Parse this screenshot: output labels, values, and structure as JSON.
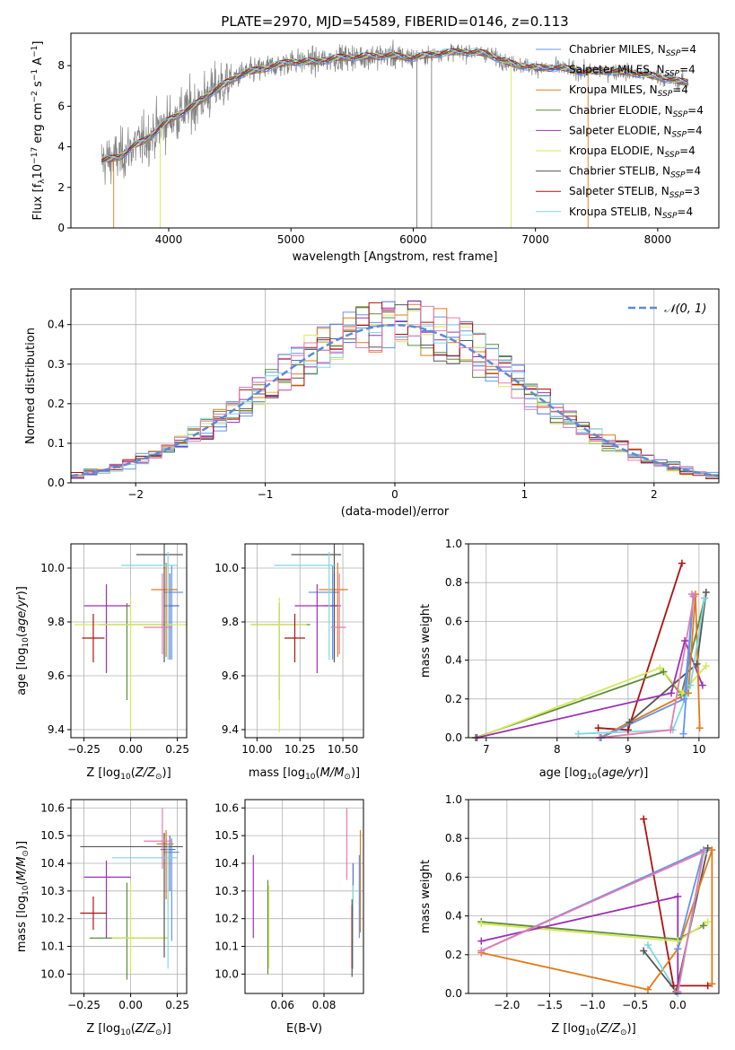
{
  "figure": {
    "title": "PLATE=2970, MJD=54589, FIBERID=0146, z=0.113"
  },
  "colors": {
    "chabrier_miles": "#6495ed",
    "salpeter_miles": "#4f6fd0",
    "kroupa_miles": "#e07b1a",
    "chabrier_elodie": "#5b8c3a",
    "salpeter_elodie": "#9b30b4",
    "kroupa_elodie": "#d6e85a",
    "chabrier_stelib": "#555555",
    "salpeter_stelib": "#b01010",
    "kroupa_stelib": "#7dd8e0",
    "pink": "#e87ab0",
    "gaussian": "#5b8ad6",
    "data_gray": "#808080"
  },
  "chart_data": [
    {
      "id": "spectrum",
      "type": "line",
      "xlabel": "wavelength [Angstrom, rest frame]",
      "ylabel": "Flux [f_λ10^-17 erg cm^-2 s^-1 A^-1]",
      "xlim": [
        3200,
        8500
      ],
      "ylim": [
        0,
        9.6
      ],
      "xticks": [
        4000,
        5000,
        6000,
        7000,
        8000
      ],
      "yticks": [
        0,
        2,
        4,
        6,
        8
      ],
      "legend": [
        "Chabrier MILES, N_SSP=4",
        "Salpeter MILES, N_SSP=4",
        "Kroupa MILES, N_SSP=4",
        "Chabrier ELODIE, N_SSP=4",
        "Salpeter ELODIE, N_SSP=4",
        "Kroupa ELODIE, N_SSP=4",
        "Chabrier STELIB, N_SSP=4",
        "Salpeter STELIB, N_SSP=3",
        "Kroupa STELIB, N_SSP=4"
      ],
      "legend_colors": [
        "#6495ed",
        "#4f6fd0",
        "#e07b1a",
        "#5b8c3a",
        "#9b30b4",
        "#d6e85a",
        "#555555",
        "#b01010",
        "#7dd8e0"
      ],
      "legend_placement": "right",
      "continuum": {
        "x": [
          3450,
          3600,
          3700,
          3800,
          3900,
          4000,
          4200,
          4400,
          4600,
          4800,
          5000,
          5200,
          5400,
          5600,
          5800,
          6000,
          6200,
          6400,
          6600,
          6800,
          7000,
          7200,
          7400,
          7600,
          7800,
          8000,
          8200
        ],
        "y": [
          3.3,
          3.5,
          4.0,
          4.3,
          4.8,
          5.3,
          6.0,
          6.9,
          7.6,
          7.9,
          8.2,
          8.2,
          8.4,
          8.45,
          8.5,
          8.4,
          8.6,
          8.7,
          8.6,
          8.1,
          7.9,
          7.9,
          7.7,
          7.75,
          7.65,
          7.45,
          7.2
        ]
      }
    },
    {
      "id": "residuals",
      "type": "histogram",
      "xlabel": "(data-model)/error",
      "ylabel": "Normed distribution",
      "xlim": [
        -2.5,
        2.5
      ],
      "ylim": [
        0,
        0.49
      ],
      "xticks": [
        -2,
        -1,
        0,
        1,
        2
      ],
      "yticks": [
        0.0,
        0.1,
        0.2,
        0.3,
        0.4
      ],
      "grid": true,
      "legend": [
        "𝒩(0, 1)"
      ],
      "legend_placement": "top-right",
      "bin_width": 0.1
    },
    {
      "id": "age_vs_Z",
      "type": "errorbar",
      "xlabel": "Z [log10(Z/Z⊙)]",
      "ylabel": "age [log10(age/yr)]",
      "xlim": [
        -0.32,
        0.3
      ],
      "ylim": [
        9.37,
        10.09
      ],
      "xticks": [
        -0.25,
        0.0,
        0.25
      ],
      "yticks": [
        9.4,
        9.6,
        9.8,
        10.0
      ],
      "grid": true,
      "points": [
        {
          "model": "chabrier_miles",
          "x": 0.22,
          "xerr": [
            0.04,
            0.06
          ],
          "y": 9.91,
          "yerr": [
            0.25,
            0.1
          ]
        },
        {
          "model": "salpeter_miles",
          "x": 0.21,
          "xerr": [
            0.03,
            0.05
          ],
          "y": 9.86,
          "yerr": [
            0.2,
            0.12
          ]
        },
        {
          "model": "kroupa_miles",
          "x": 0.19,
          "xerr": [
            0.08,
            0.06
          ],
          "y": 9.92,
          "yerr": [
            0.25,
            0.1
          ]
        },
        {
          "model": "chabrier_elodie",
          "x": -0.02,
          "xerr": [
            0.15,
            0.22
          ],
          "y": 9.79,
          "yerr": [
            0.28,
            0.08
          ]
        },
        {
          "model": "salpeter_elodie",
          "x": -0.13,
          "xerr": [
            0.12,
            0.13
          ],
          "y": 9.86,
          "yerr": [
            0.25,
            0.08
          ]
        },
        {
          "model": "kroupa_elodie",
          "x": 0.0,
          "xerr": [
            0.3,
            0.3
          ],
          "y": 9.79,
          "yerr": [
            0.4,
            0.1
          ]
        },
        {
          "model": "chabrier_stelib",
          "x": 0.18,
          "xerr": [
            0.15,
            0.1
          ],
          "y": 10.05,
          "yerr": [
            0.4,
            0.05
          ]
        },
        {
          "model": "salpeter_stelib",
          "x": -0.2,
          "xerr": [
            0.06,
            0.06
          ],
          "y": 9.74,
          "yerr": [
            0.09,
            0.09
          ]
        },
        {
          "model": "kroupa_stelib",
          "x": 0.2,
          "xerr": [
            0.25,
            0.05
          ],
          "y": 10.01,
          "yerr": [
            0.35,
            0.05
          ]
        },
        {
          "model": "pink",
          "x": 0.17,
          "xerr": [
            0.1,
            0.05
          ],
          "y": 9.78,
          "yerr": [
            0.1,
            0.2
          ]
        }
      ]
    },
    {
      "id": "age_vs_mass",
      "type": "errorbar",
      "xlabel": "mass [log10(M/M⊙)]",
      "xlim": [
        9.93,
        10.62
      ],
      "ylim": [
        9.37,
        10.09
      ],
      "xticks": [
        10.0,
        10.25,
        10.5
      ],
      "yticks": [
        9.4,
        9.6,
        9.8,
        10.0
      ],
      "grid": true,
      "points": [
        {
          "model": "chabrier_miles",
          "x": 10.44,
          "xerr": [
            0.14,
            0.04
          ],
          "y": 9.91,
          "yerr": [
            0.25,
            0.1
          ]
        },
        {
          "model": "salpeter_miles",
          "x": 10.45,
          "xerr": [
            0.06,
            0.04
          ],
          "y": 9.86,
          "yerr": [
            0.2,
            0.12
          ]
        },
        {
          "model": "kroupa_miles",
          "x": 10.47,
          "xerr": [
            0.11,
            0.06
          ],
          "y": 9.92,
          "yerr": [
            0.25,
            0.1
          ]
        },
        {
          "model": "chabrier_elodie",
          "x": 10.13,
          "xerr": [
            0.16,
            0.18
          ],
          "y": 9.79,
          "yerr": [
            0.28,
            0.08
          ]
        },
        {
          "model": "salpeter_elodie",
          "x": 10.35,
          "xerr": [
            0.13,
            0.12
          ],
          "y": 9.86,
          "yerr": [
            0.25,
            0.08
          ]
        },
        {
          "model": "kroupa_elodie",
          "x": 10.13,
          "xerr": [
            0.17,
            0.16
          ],
          "y": 9.79,
          "yerr": [
            0.4,
            0.1
          ]
        },
        {
          "model": "chabrier_stelib",
          "x": 10.45,
          "xerr": [
            0.25,
            0.04
          ],
          "y": 10.05,
          "yerr": [
            0.4,
            0.05
          ]
        },
        {
          "model": "salpeter_stelib",
          "x": 10.22,
          "xerr": [
            0.06,
            0.06
          ],
          "y": 9.74,
          "yerr": [
            0.09,
            0.09
          ]
        },
        {
          "model": "kroupa_stelib",
          "x": 10.42,
          "xerr": [
            0.32,
            0.04
          ],
          "y": 10.01,
          "yerr": [
            0.35,
            0.05
          ]
        },
        {
          "model": "pink",
          "x": 10.48,
          "xerr": [
            0.05,
            0.04
          ],
          "y": 9.78,
          "yerr": [
            0.1,
            0.2
          ]
        }
      ]
    },
    {
      "id": "massweight_vs_age",
      "type": "line",
      "xlabel": "age [log10(age/yr)]",
      "ylabel": "mass weight",
      "xlim": [
        6.75,
        10.28
      ],
      "ylim": [
        0,
        1
      ],
      "xticks": [
        7,
        8,
        9,
        10
      ],
      "yticks": [
        0.0,
        0.2,
        0.4,
        0.6,
        0.8,
        1.0
      ],
      "grid": true,
      "series": [
        {
          "model": "salpeter_stelib",
          "x": [
            8.58,
            9.0,
            9.76
          ],
          "y": [
            0.05,
            0.04,
            0.9
          ]
        },
        {
          "model": "chabrier_stelib",
          "x": [
            8.62,
            9.02,
            9.97,
            10.1
          ],
          "y": [
            0.0,
            0.08,
            0.38,
            0.75
          ]
        },
        {
          "model": "chabrier_elodie",
          "x": [
            6.85,
            9.5,
            9.75,
            10.08
          ],
          "y": [
            0.0,
            0.34,
            0.22,
            0.72
          ]
        },
        {
          "model": "kroupa_elodie",
          "x": [
            6.87,
            9.45,
            9.76,
            10.1
          ],
          "y": [
            0.0,
            0.36,
            0.23,
            0.37
          ]
        },
        {
          "model": "salpeter_elodie",
          "x": [
            6.87,
            9.61,
            9.8,
            10.05
          ],
          "y": [
            0.0,
            0.23,
            0.5,
            0.27
          ]
        },
        {
          "model": "kroupa_miles",
          "x": [
            8.6,
            9.85,
            9.95,
            10.01
          ],
          "y": [
            0.0,
            0.23,
            0.74,
            0.05
          ]
        },
        {
          "model": "chabrier_miles",
          "x": [
            8.62,
            9.79,
            9.92,
            9.78
          ],
          "y": [
            0.0,
            0.2,
            0.73,
            0.02
          ]
        },
        {
          "model": "kroupa_stelib",
          "x": [
            8.3,
            9.63,
            9.88,
            10.08
          ],
          "y": [
            0.02,
            0.04,
            0.27,
            0.72
          ]
        },
        {
          "model": "pink",
          "x": [
            8.6,
            9.6,
            9.93,
            9.9
          ],
          "y": [
            0.0,
            0.04,
            0.73,
            0.74
          ]
        }
      ]
    },
    {
      "id": "mass_vs_Z",
      "type": "errorbar",
      "xlabel": "Z [log10(Z/Z⊙)]",
      "ylabel": "mass [log10(M/M⊙)]",
      "xlim": [
        -0.32,
        0.3
      ],
      "ylim": [
        9.93,
        10.63
      ],
      "xticks": [
        -0.25,
        0.0,
        0.25
      ],
      "yticks": [
        10.0,
        10.1,
        10.2,
        10.3,
        10.4,
        10.5,
        10.6
      ],
      "grid": true,
      "points": [
        {
          "model": "chabrier_miles",
          "x": 0.22,
          "xerr": [
            0.04,
            0.04
          ],
          "y": 10.44,
          "yerr": [
            0.32,
            0.05
          ]
        },
        {
          "model": "salpeter_miles",
          "x": 0.21,
          "xerr": [
            0.05,
            0.03
          ],
          "y": 10.45,
          "yerr": [
            0.15,
            0.05
          ]
        },
        {
          "model": "kroupa_miles",
          "x": 0.19,
          "xerr": [
            0.05,
            0.04
          ],
          "y": 10.47,
          "yerr": [
            0.2,
            0.05
          ]
        },
        {
          "model": "chabrier_elodie",
          "x": -0.02,
          "xerr": [
            0.2,
            0.22
          ],
          "y": 10.13,
          "yerr": [
            0.15,
            0.2
          ]
        },
        {
          "model": "salpeter_elodie",
          "x": -0.13,
          "xerr": [
            0.12,
            0.13
          ],
          "y": 10.35,
          "yerr": [
            0.22,
            0.06
          ]
        },
        {
          "model": "kroupa_elodie",
          "x": 0.0,
          "xerr": [
            0.1,
            0.2
          ],
          "y": 10.13,
          "yerr": [
            0.13,
            0.2
          ]
        },
        {
          "model": "chabrier_stelib",
          "x": 0.18,
          "xerr": [
            0.45,
            0.1
          ],
          "y": 10.46,
          "yerr": [
            0.4,
            0.05
          ]
        },
        {
          "model": "salpeter_stelib",
          "x": -0.2,
          "xerr": [
            0.07,
            0.07
          ],
          "y": 10.22,
          "yerr": [
            0.06,
            0.06
          ]
        },
        {
          "model": "kroupa_stelib",
          "x": 0.2,
          "xerr": [
            0.3,
            0.05
          ],
          "y": 10.42,
          "yerr": [
            0.4,
            0.05
          ]
        },
        {
          "model": "pink",
          "x": 0.17,
          "xerr": [
            0.1,
            0.05
          ],
          "y": 10.48,
          "yerr": [
            0.1,
            0.12
          ]
        }
      ]
    },
    {
      "id": "mass_vs_EBV",
      "type": "errorbar",
      "xlabel": "E(B-V)",
      "xlim": [
        0.042,
        0.099
      ],
      "ylim": [
        9.93,
        10.63
      ],
      "xticks": [
        0.06,
        0.08
      ],
      "yticks": [
        10.0,
        10.1,
        10.2,
        10.3,
        10.4,
        10.5,
        10.6
      ],
      "grid": true,
      "points": [
        {
          "model": "chabrier_miles",
          "x": 0.097,
          "y": 10.33,
          "yerr": [
            0.2,
            0.1
          ]
        },
        {
          "model": "salpeter_miles",
          "x": 0.094,
          "y": 10.2,
          "yerr": [
            0.18,
            0.2
          ]
        },
        {
          "model": "kroupa_miles",
          "x": 0.0975,
          "y": 10.35,
          "yerr": [
            0.2,
            0.17
          ]
        },
        {
          "model": "chabrier_elodie",
          "x": 0.053,
          "y": 10.15,
          "yerr": [
            0.15,
            0.19
          ]
        },
        {
          "model": "salpeter_elodie",
          "x": 0.046,
          "y": 10.28,
          "yerr": [
            0.15,
            0.15
          ]
        },
        {
          "model": "kroupa_elodie",
          "x": 0.0535,
          "y": 10.15,
          "yerr": [
            0.13,
            0.17
          ]
        },
        {
          "model": "chabrier_stelib",
          "x": 0.0935,
          "y": 10.05,
          "yerr": [
            0.06,
            0.22
          ]
        },
        {
          "model": "salpeter_stelib",
          "x": 0.0935,
          "y": 10.1,
          "yerr": [
            0.08,
            0.15
          ]
        },
        {
          "model": "kroupa_stelib",
          "x": 0.094,
          "y": 10.12,
          "yerr": [
            0.1,
            0.2
          ]
        },
        {
          "model": "pink",
          "x": 0.091,
          "y": 10.46,
          "yerr": [
            0.12,
            0.14
          ]
        }
      ]
    },
    {
      "id": "massweight_vs_Z",
      "type": "line",
      "xlabel": "Z [log10(Z/Z⊙)]",
      "ylabel": "mass weight",
      "xlim": [
        -2.45,
        0.48
      ],
      "ylim": [
        0,
        1
      ],
      "xticks": [
        -2.0,
        -1.5,
        -1.0,
        -0.5,
        0.0
      ],
      "yticks": [
        0.0,
        0.2,
        0.4,
        0.6,
        0.8,
        1.0
      ],
      "grid": true,
      "series": [
        {
          "model": "salpeter_stelib",
          "x": [
            -0.4,
            -0.05,
            0.35
          ],
          "y": [
            0.9,
            0.04,
            0.04
          ]
        },
        {
          "model": "chabrier_stelib",
          "x": [
            -0.4,
            -0.02,
            0.35
          ],
          "y": [
            0.22,
            0.01,
            0.75
          ]
        },
        {
          "model": "chabrier_elodie",
          "x": [
            -2.3,
            0.0,
            0.3
          ],
          "y": [
            0.37,
            0.28,
            0.35
          ]
        },
        {
          "model": "kroupa_elodie",
          "x": [
            -2.3,
            0.0,
            0.35
          ],
          "y": [
            0.36,
            0.27,
            0.37
          ]
        },
        {
          "model": "salpeter_elodie",
          "x": [
            -2.3,
            0.0,
            0.0
          ],
          "y": [
            0.27,
            0.5,
            0.0
          ]
        },
        {
          "model": "kroupa_miles",
          "x": [
            -2.3,
            -0.35,
            0.0,
            0.4,
            0.4
          ],
          "y": [
            0.21,
            0.02,
            0.23,
            0.74,
            0.05
          ]
        },
        {
          "model": "chabrier_miles",
          "x": [
            -2.3,
            0.3,
            0.0
          ],
          "y": [
            0.22,
            0.74,
            0.23
          ]
        },
        {
          "model": "kroupa_stelib",
          "x": [
            -0.35,
            0.0,
            0.3
          ],
          "y": [
            0.25,
            0.0,
            0.72
          ]
        },
        {
          "model": "pink",
          "x": [
            -2.3,
            0.3,
            0.0
          ],
          "y": [
            0.22,
            0.73,
            0.01
          ]
        }
      ]
    }
  ]
}
